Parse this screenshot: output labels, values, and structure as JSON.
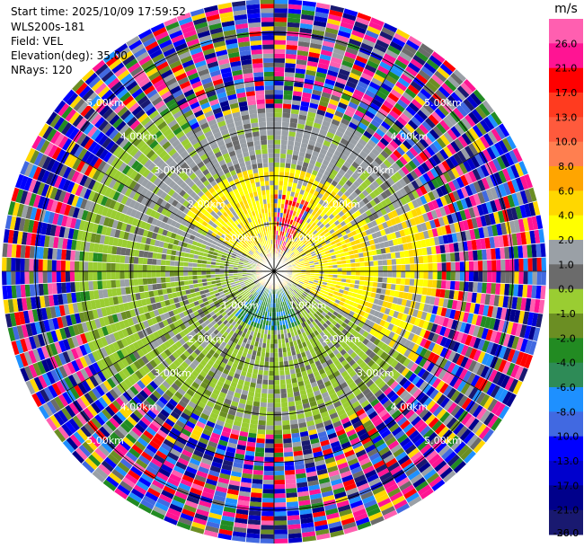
{
  "header": {
    "start_time": "Start time: 2025/10/09 17:59:52",
    "instrument": "WLS200s-181",
    "field": "Field: VEL",
    "elevation": "Elevation(deg): 35.00",
    "nrays": "NRays: 120"
  },
  "chart_data": {
    "type": "heatmap",
    "projection": "polar-ppi",
    "field": "VEL",
    "units": "m/s",
    "elevation_deg": 35.0,
    "n_rays": 120,
    "max_range_km": 5.7,
    "range_ring_labels": [
      "1.00km",
      "2.00km",
      "3.00km",
      "4.00km",
      "5.00km"
    ],
    "range_rings_km": [
      1,
      2,
      3,
      4,
      5
    ],
    "spokes_deg": [
      0,
      30,
      60,
      90,
      120,
      150,
      180,
      210,
      240,
      270,
      300,
      330
    ],
    "colorbar": {
      "label": "m/s",
      "ticks": [
        "26.0",
        "21.0",
        "17.0",
        "13.0",
        "10.0",
        "8.0",
        "6.0",
        "4.0",
        "2.0",
        "1.0",
        "0.0",
        "-1.0",
        "-2.0",
        "-4.0",
        "-6.0",
        "-8.0",
        "-10.0",
        "-13.0",
        "-17.0",
        "-21.0",
        "-26.0",
        "-30.0"
      ],
      "colors": [
        "#ff5fb0",
        "#ff1493",
        "#ff0000",
        "#ff3b1f",
        "#ff5a3c",
        "#ff7f50",
        "#ffa500",
        "#ffd700",
        "#ffff00",
        "#9aa0a6",
        "#6b6b6b",
        "#9acd32",
        "#6b8e23",
        "#228b22",
        "#2e8b57",
        "#1e90ff",
        "#4169e1",
        "#0000ff",
        "#0000cd",
        "#00008b",
        "#191970"
      ]
    },
    "pattern": {
      "inner_positive_sector_deg": [
        0,
        120
      ],
      "inner_positive_range_km": 2.2,
      "near_zero_range_km": 3.4,
      "clutter_beyond_km": 3.4
    }
  }
}
